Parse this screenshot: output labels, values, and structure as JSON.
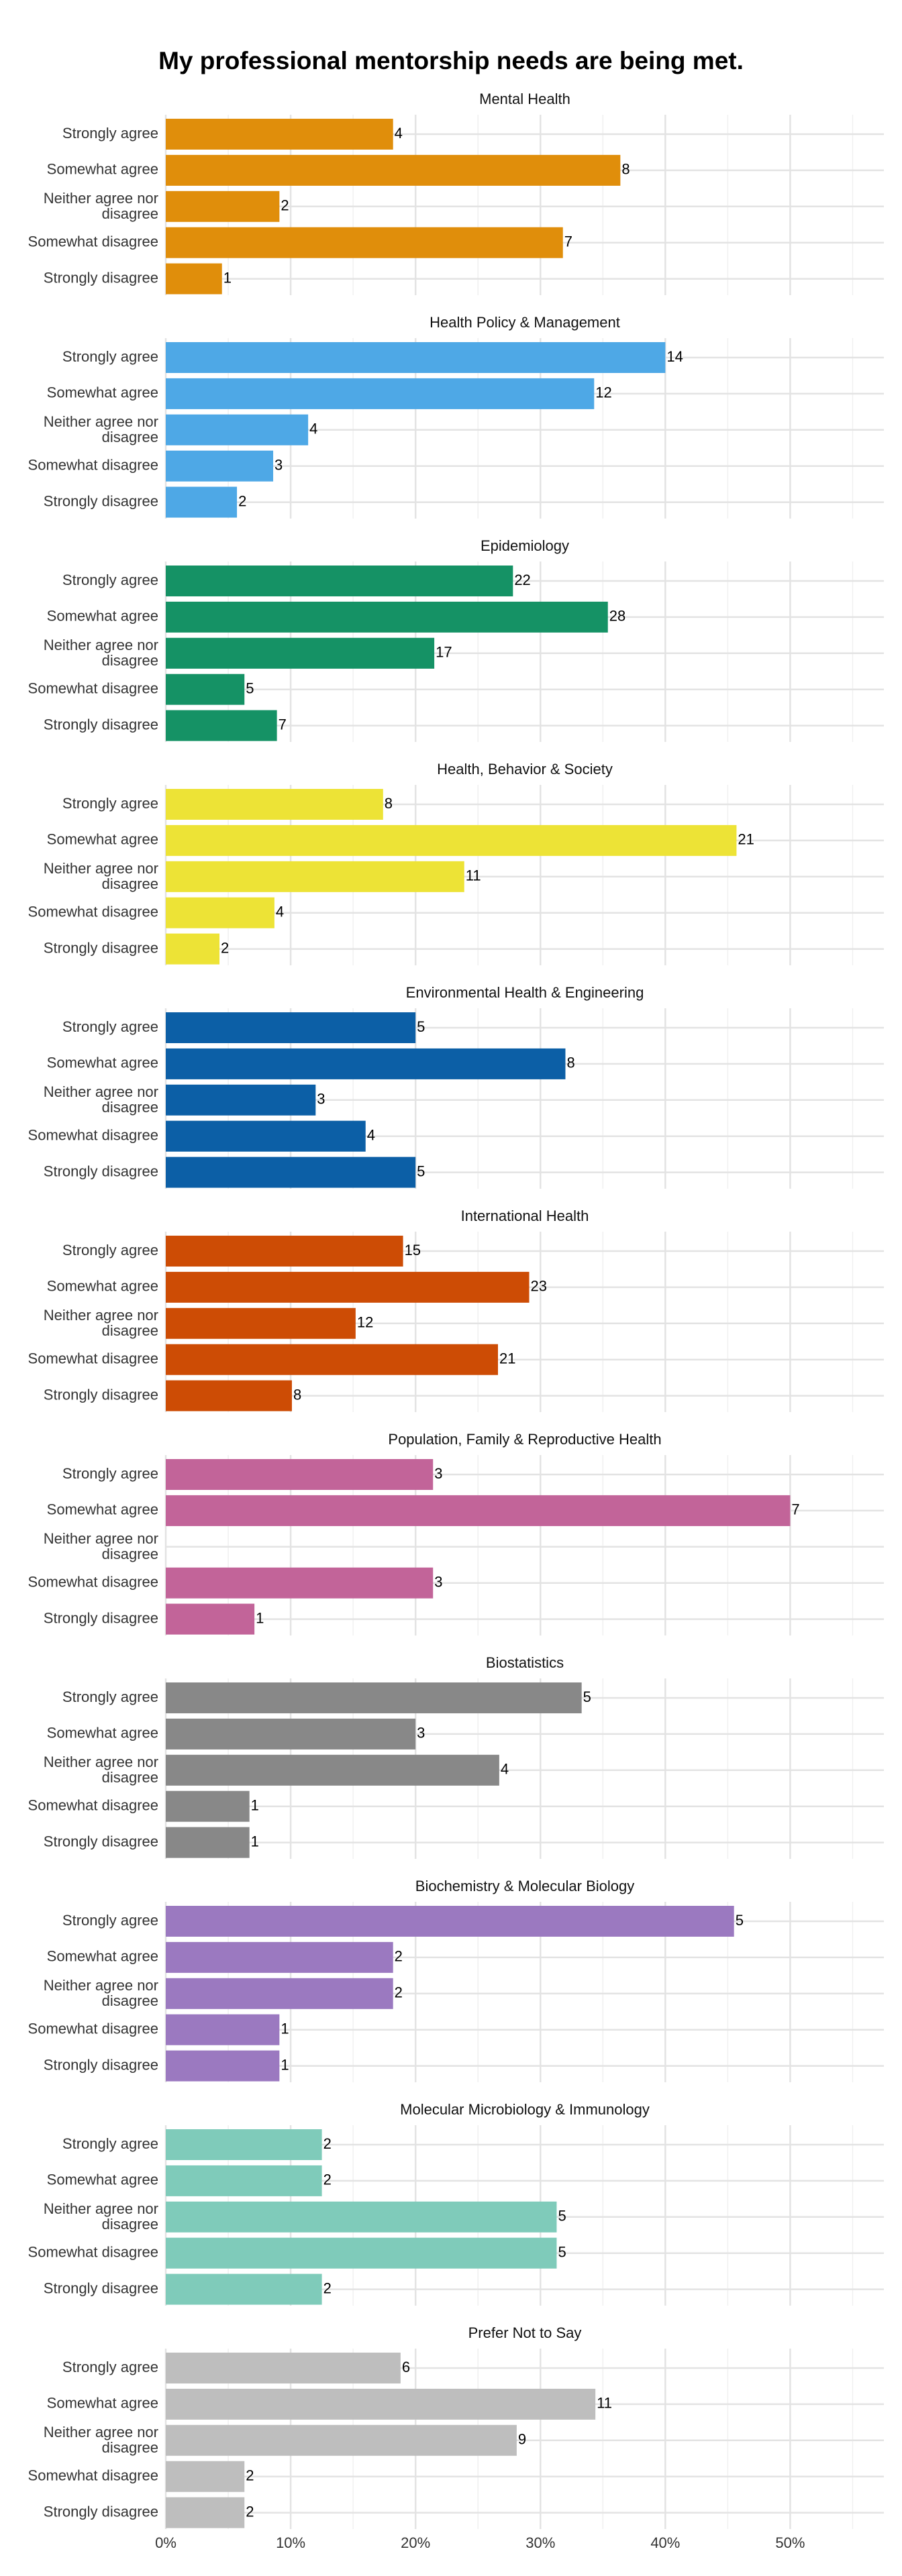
{
  "title": "My professional mentorship needs are being met.",
  "xlim": [
    0,
    57.5
  ],
  "xticks": [
    {
      "value": 0,
      "label": "0%"
    },
    {
      "value": 10,
      "label": "10%"
    },
    {
      "value": 20,
      "label": "20%"
    },
    {
      "value": 30,
      "label": "30%"
    },
    {
      "value": 40,
      "label": "40%"
    },
    {
      "value": 50,
      "label": "50%"
    }
  ],
  "grid": true,
  "chart_data": [
    {
      "type": "bar",
      "title": "Mental Health",
      "color": "#e08e0b",
      "categories": [
        "Strongly agree",
        "Somewhat agree",
        "Neither agree nor disagree",
        "Somewhat disagree",
        "Strongly disagree"
      ],
      "values": [
        18.2,
        36.4,
        9.1,
        31.8,
        4.5
      ],
      "counts": [
        4,
        8,
        2,
        7,
        1
      ]
    },
    {
      "type": "bar",
      "title": "Health Policy & Management",
      "color": "#4ea8e6",
      "categories": [
        "Strongly agree",
        "Somewhat agree",
        "Neither agree nor disagree",
        "Somewhat disagree",
        "Strongly disagree"
      ],
      "values": [
        40.0,
        34.3,
        11.4,
        8.6,
        5.7
      ],
      "counts": [
        14,
        12,
        4,
        3,
        2
      ]
    },
    {
      "type": "bar",
      "title": "Epidemiology",
      "color": "#159265",
      "categories": [
        "Strongly agree",
        "Somewhat agree",
        "Neither agree nor disagree",
        "Somewhat disagree",
        "Strongly disagree"
      ],
      "values": [
        27.8,
        35.4,
        21.5,
        6.3,
        8.9
      ],
      "counts": [
        22,
        28,
        17,
        5,
        7
      ]
    },
    {
      "type": "bar",
      "title": "Health, Behavior & Society",
      "color": "#ede336",
      "categories": [
        "Strongly agree",
        "Somewhat agree",
        "Neither agree nor disagree",
        "Somewhat disagree",
        "Strongly disagree"
      ],
      "values": [
        17.4,
        45.7,
        23.9,
        8.7,
        4.3
      ],
      "counts": [
        8,
        21,
        11,
        4,
        2
      ]
    },
    {
      "type": "bar",
      "title": "Environmental Health & Engineering",
      "color": "#0c5fa6",
      "categories": [
        "Strongly agree",
        "Somewhat agree",
        "Neither agree nor disagree",
        "Somewhat disagree",
        "Strongly disagree"
      ],
      "values": [
        20.0,
        32.0,
        12.0,
        16.0,
        20.0
      ],
      "counts": [
        5,
        8,
        3,
        4,
        5
      ]
    },
    {
      "type": "bar",
      "title": "International Health",
      "color": "#cd4c05",
      "categories": [
        "Strongly agree",
        "Somewhat agree",
        "Neither agree nor disagree",
        "Somewhat disagree",
        "Strongly disagree"
      ],
      "values": [
        19.0,
        29.1,
        15.2,
        26.6,
        10.1
      ],
      "counts": [
        15,
        23,
        12,
        21,
        8
      ]
    },
    {
      "type": "bar",
      "title": "Population, Family & Reproductive Health",
      "color": "#c26499",
      "categories": [
        "Strongly agree",
        "Somewhat agree",
        "Neither agree nor disagree",
        "Somewhat disagree",
        "Strongly disagree"
      ],
      "values": [
        21.4,
        50.0,
        null,
        21.4,
        7.1
      ],
      "counts": [
        3,
        7,
        null,
        3,
        1
      ]
    },
    {
      "type": "bar",
      "title": "Biostatistics",
      "color": "#888888",
      "categories": [
        "Strongly agree",
        "Somewhat agree",
        "Neither agree nor disagree",
        "Somewhat disagree",
        "Strongly disagree"
      ],
      "values": [
        33.3,
        20.0,
        26.7,
        6.7,
        6.7
      ],
      "counts": [
        5,
        3,
        4,
        1,
        1
      ]
    },
    {
      "type": "bar",
      "title": "Biochemistry & Molecular Biology",
      "color": "#9b79c0",
      "categories": [
        "Strongly agree",
        "Somewhat agree",
        "Neither agree nor disagree",
        "Somewhat disagree",
        "Strongly disagree"
      ],
      "values": [
        45.5,
        18.2,
        18.2,
        9.1,
        9.1
      ],
      "counts": [
        5,
        2,
        2,
        1,
        1
      ]
    },
    {
      "type": "bar",
      "title": "Molecular Microbiology & Immunology",
      "color": "#7fcbba",
      "categories": [
        "Strongly agree",
        "Somewhat agree",
        "Neither agree nor disagree",
        "Somewhat disagree",
        "Strongly disagree"
      ],
      "values": [
        12.5,
        12.5,
        31.3,
        31.3,
        12.5
      ],
      "counts": [
        2,
        2,
        5,
        5,
        2
      ]
    },
    {
      "type": "bar",
      "title": "Prefer Not to Say",
      "color": "#bebebe",
      "categories": [
        "Strongly agree",
        "Somewhat agree",
        "Neither agree nor disagree",
        "Somewhat disagree",
        "Strongly disagree"
      ],
      "values": [
        18.8,
        34.4,
        28.1,
        6.3,
        6.3
      ],
      "counts": [
        6,
        11,
        9,
        2,
        2
      ]
    }
  ]
}
